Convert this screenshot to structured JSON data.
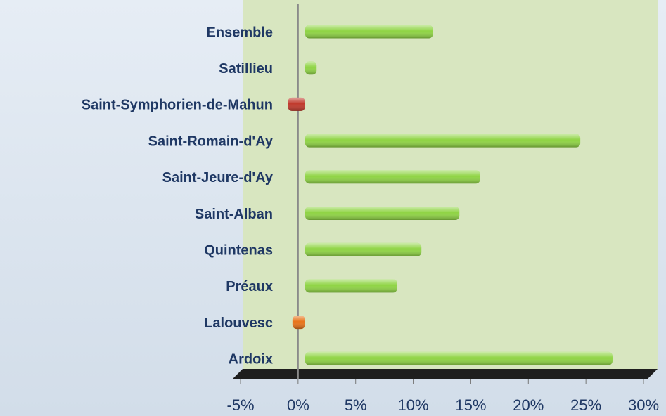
{
  "chart_data": {
    "type": "barh",
    "categories": [
      "Ensemble",
      "Satillieu",
      "Saint-Symphorien-de-Mahun",
      "Saint-Romain-d'Ay",
      "Saint-Jeure-d'Ay",
      "Saint-Alban",
      "Quintenas",
      "Préaux",
      "Lalouvesc",
      "Ardoix"
    ],
    "values": [
      11.1,
      1.0,
      -1.5,
      23.9,
      15.2,
      13.4,
      10.1,
      8.0,
      -1.1,
      26.7
    ],
    "colors": [
      "#8fd444",
      "#8fd444",
      "#c0392b",
      "#8fd444",
      "#8fd444",
      "#8fd444",
      "#8fd444",
      "#8fd444",
      "#e8741a",
      "#8fd444"
    ],
    "xlim": [
      -5,
      30
    ],
    "xticks": [
      {
        "value": -5,
        "label": "-5%"
      },
      {
        "value": 0,
        "label": "0%"
      },
      {
        "value": 5,
        "label": "5%"
      },
      {
        "value": 10,
        "label": "10%"
      },
      {
        "value": 15,
        "label": "15%"
      },
      {
        "value": 20,
        "label": "20%"
      },
      {
        "value": 25,
        "label": "25%"
      },
      {
        "value": 30,
        "label": "30%"
      }
    ]
  }
}
